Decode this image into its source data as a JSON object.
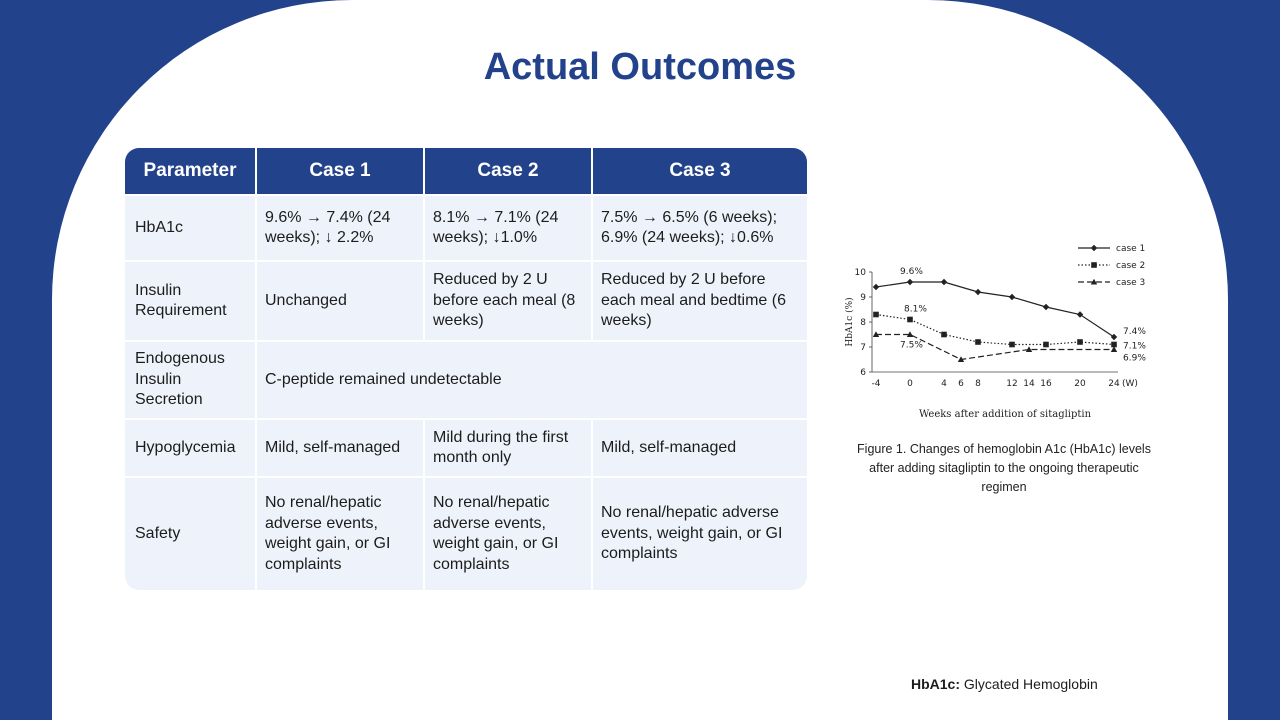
{
  "title": "Actual Outcomes",
  "table": {
    "headers": [
      "Parameter",
      "Case 1",
      "Case 2",
      "Case 3"
    ],
    "rows": [
      {
        "parameter": "HbA1c",
        "case1": "9.6% → 7.4% (24 weeks); ↓ 2.2%",
        "case2": "8.1% → 7.1% (24 weeks); ↓1.0%",
        "case3": "7.5% → 6.5% (6 weeks); 6.9% (24 weeks); ↓0.6%"
      },
      {
        "parameter": "Insulin Requirement",
        "case1": "Unchanged",
        "case2": "Reduced by 2 U before each meal (8 weeks)",
        "case3": "Reduced by 2 U before each meal and bedtime (6 weeks)"
      },
      {
        "parameter": "Endogenous Insulin Secretion",
        "merged": "C-peptide remained undetectable"
      },
      {
        "parameter": "Hypoglycemia",
        "case1": "Mild, self-managed",
        "case2": "Mild during the first month only",
        "case3": "Mild, self-managed"
      },
      {
        "parameter": "Safety",
        "case1": "No renal/hepatic adverse events, weight gain, or GI complaints",
        "case2": "No renal/hepatic adverse events, weight gain, or GI complaints",
        "case3": "No renal/hepatic adverse events, weight gain, or GI complaints"
      }
    ]
  },
  "chart_data": {
    "type": "line",
    "x": [
      -4,
      0,
      4,
      6,
      8,
      12,
      14,
      16,
      20,
      24
    ],
    "x_tick_labels": [
      "-4",
      "0",
      "4",
      "6",
      "8",
      "12",
      "14",
      "16",
      "20",
      "24"
    ],
    "x_unit": "(W)",
    "xlabel": "Weeks after addition of sitagliptin",
    "ylabel": "HbA1c (%)",
    "y_ticks": [
      6,
      7,
      8,
      9,
      10
    ],
    "ylim": [
      6,
      10
    ],
    "legend_position": "top-right",
    "series": [
      {
        "name": "case 1",
        "style": "solid",
        "marker": "diamond",
        "points": [
          [
            -4,
            9.4
          ],
          [
            0,
            9.6
          ],
          [
            4,
            9.6
          ],
          [
            8,
            9.2
          ],
          [
            12,
            9.0
          ],
          [
            16,
            8.6
          ],
          [
            20,
            8.3
          ],
          [
            24,
            7.4
          ]
        ]
      },
      {
        "name": "case 2",
        "style": "dotted",
        "marker": "square",
        "points": [
          [
            -4,
            8.3
          ],
          [
            0,
            8.1
          ],
          [
            4,
            7.5
          ],
          [
            8,
            7.2
          ],
          [
            12,
            7.1
          ],
          [
            16,
            7.1
          ],
          [
            20,
            7.2
          ],
          [
            24,
            7.1
          ]
        ]
      },
      {
        "name": "case 3",
        "style": "dashed",
        "marker": "triangle",
        "points": [
          [
            -4,
            7.5
          ],
          [
            0,
            7.5
          ],
          [
            6,
            6.5
          ],
          [
            14,
            6.9
          ],
          [
            24,
            6.9
          ]
        ]
      }
    ],
    "annotations": [
      "9.6%",
      "8.1%",
      "7.5%",
      "7.4%",
      "7.1%",
      "6.9%"
    ]
  },
  "caption": "Figure 1. Changes of hemoglobin A1c (HbA1c) levels after adding sitagliptin to the ongoing therapeutic regimen",
  "footnote": {
    "term": "HbA1c:",
    "definition": " Glycated Hemoglobin"
  },
  "colors": {
    "brand_blue": "#23428c",
    "cell_bg": "#eef3fb"
  }
}
